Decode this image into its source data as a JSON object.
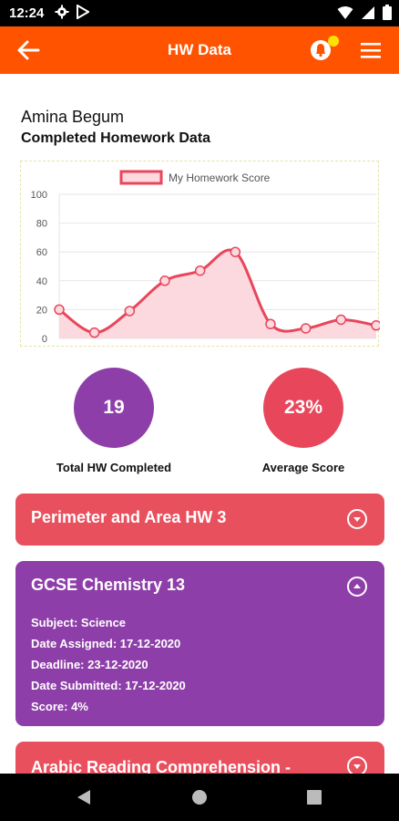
{
  "status_bar": {
    "time": "12:24",
    "icons": [
      "gear-icon",
      "play-store-icon",
      "wifi-icon",
      "signal-icon",
      "battery-icon"
    ]
  },
  "app_bar": {
    "title": "HW Data",
    "color": "#ff5300",
    "back_icon": "arrow-left-icon",
    "bell_icon": "bell-icon",
    "menu_icon": "hamburger-menu-icon"
  },
  "student": {
    "name": "Amina Begum",
    "chart_heading": "Completed Homework Data"
  },
  "chart_data": {
    "type": "area",
    "legend": [
      "My Homework Score"
    ],
    "legend_position": "top",
    "series": [
      {
        "name": "My Homework Score",
        "values": [
          20,
          4,
          19,
          40,
          47,
          60,
          10,
          7,
          13,
          9
        ],
        "color": "#e8465b",
        "fill": "#fbd9df"
      }
    ],
    "ylim": [
      0,
      100
    ],
    "yticks": [
      0,
      20,
      40,
      60,
      80,
      100
    ],
    "grid": true
  },
  "stats": {
    "total_completed": {
      "value": "19",
      "label": "Total HW Completed",
      "color": "#8e3ea8"
    },
    "average_score": {
      "value": "23%",
      "label": "Average Score",
      "color": "#e8465b"
    }
  },
  "cards": [
    {
      "title": "Perimeter and Area HW 3",
      "color": "#e8505e",
      "expanded": false,
      "toggle_icon": "chevron-down-circle-icon"
    },
    {
      "title": "GCSE Chemistry 13",
      "color": "#8e3ea8",
      "expanded": true,
      "toggle_icon": "chevron-up-circle-icon",
      "details": [
        "Subject: Science",
        "Date Assigned: 17-12-2020",
        "Deadline: 23-12-2020",
        "Date Submitted: 17-12-2020",
        "Score: 4%"
      ]
    },
    {
      "title": "Arabic Reading Comprehension -",
      "color": "#e8505e",
      "expanded": false,
      "toggle_icon": "chevron-down-circle-icon"
    }
  ],
  "nav_bar": {
    "icons": [
      "back-triangle-icon",
      "home-circle-icon",
      "recents-square-icon"
    ]
  }
}
